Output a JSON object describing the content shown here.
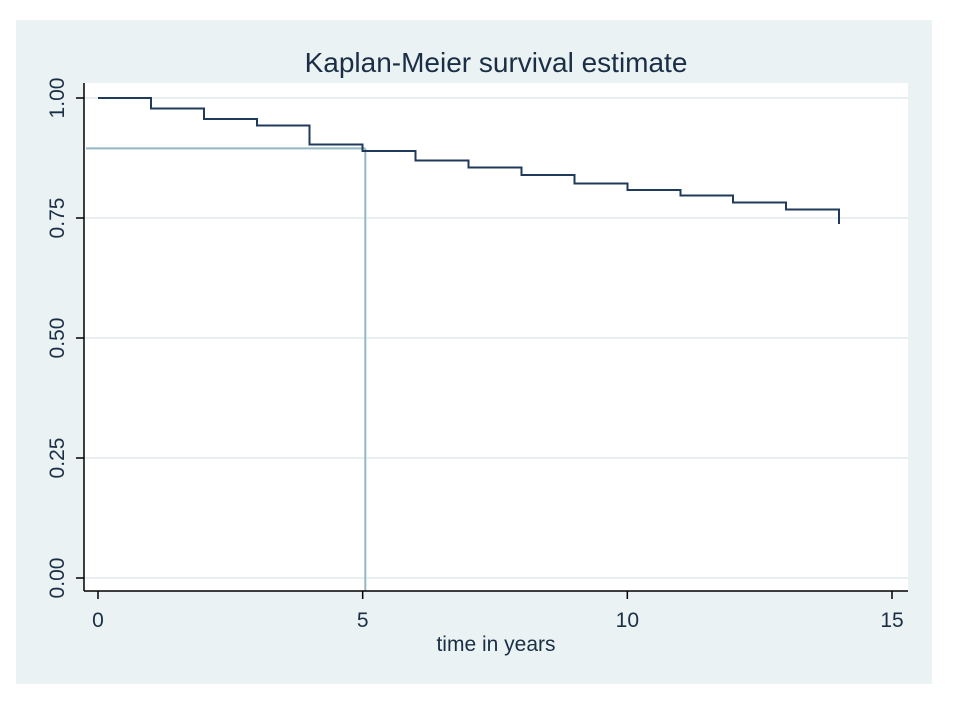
{
  "chart_data": {
    "type": "line",
    "title": "Kaplan-Meier survival estimate",
    "xlabel": "time in years",
    "ylabel": "",
    "xlim": [
      0,
      15
    ],
    "ylim": [
      0,
      1
    ],
    "x_ticks": [
      "0",
      "5",
      "10",
      "15"
    ],
    "x_tick_values": [
      0,
      5,
      10,
      15
    ],
    "y_ticks": [
      "0.00",
      "0.25",
      "0.50",
      "0.75",
      "1.00"
    ],
    "y_tick_values": [
      0,
      0.25,
      0.5,
      0.75,
      1.0
    ],
    "grid": true,
    "legend": "none",
    "series": [
      {
        "style": "step",
        "color": "#1f3a5a",
        "x": [
          0,
          1,
          2,
          3,
          4,
          5,
          6,
          7,
          8,
          9,
          10,
          11,
          12,
          13,
          14
        ],
        "y": [
          1.0,
          0.978,
          0.956,
          0.943,
          0.903,
          0.89,
          0.87,
          0.855,
          0.84,
          0.822,
          0.808,
          0.797,
          0.782,
          0.768,
          0.75
        ],
        "end_x": 14
      }
    ],
    "annotations": [
      {
        "type": "reference-lines",
        "x": 5.05,
        "y": 0.895,
        "color": "#93b8c3"
      }
    ]
  },
  "colors": {
    "outer_background": "#eaf2f3",
    "plot_background": "#ffffff",
    "grid": "#e2eaec",
    "axis": "#000000",
    "text": "#1a2f45"
  }
}
